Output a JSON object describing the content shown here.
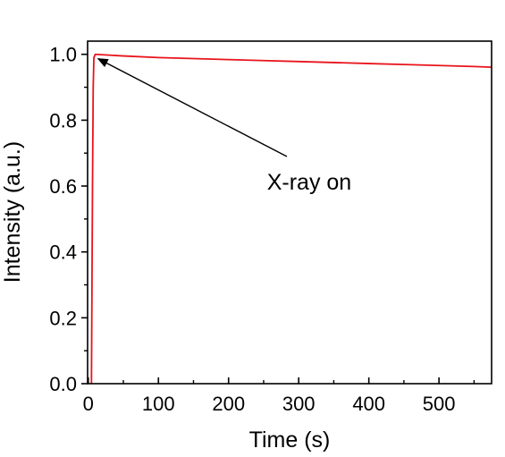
{
  "chart_data": {
    "type": "line",
    "xlabel": "Time (s)",
    "ylabel": "Intensity (a.u.)",
    "xlim": [
      -1,
      575
    ],
    "ylim": [
      0,
      1.04
    ],
    "xticks": [
      0,
      100,
      200,
      300,
      400,
      500
    ],
    "xtick_labels": [
      "0",
      "100",
      "200",
      "300",
      "400",
      "500"
    ],
    "yticks": [
      0.0,
      0.2,
      0.4,
      0.6,
      0.8,
      1.0
    ],
    "ytick_labels": [
      "0.0",
      "0.2",
      "0.4",
      "0.6",
      "0.8",
      "1.0"
    ],
    "grid": false,
    "series": [
      {
        "color": "#e8141c",
        "x": [
          4.5,
          5,
          6,
          7,
          8,
          10,
          50,
          100,
          150,
          200,
          250,
          300,
          350,
          400,
          450,
          500,
          550,
          575
        ],
        "y": [
          0.0,
          0.2,
          0.6,
          0.9,
          0.99,
          1.0,
          0.995,
          0.99,
          0.987,
          0.984,
          0.981,
          0.978,
          0.975,
          0.972,
          0.969,
          0.966,
          0.963,
          0.961
        ]
      }
    ],
    "annotations": [
      {
        "text": "X-ray on",
        "text_x": 315,
        "text_y": 0.6,
        "arrow_to_x": 10,
        "arrow_to_y": 0.995
      }
    ]
  }
}
